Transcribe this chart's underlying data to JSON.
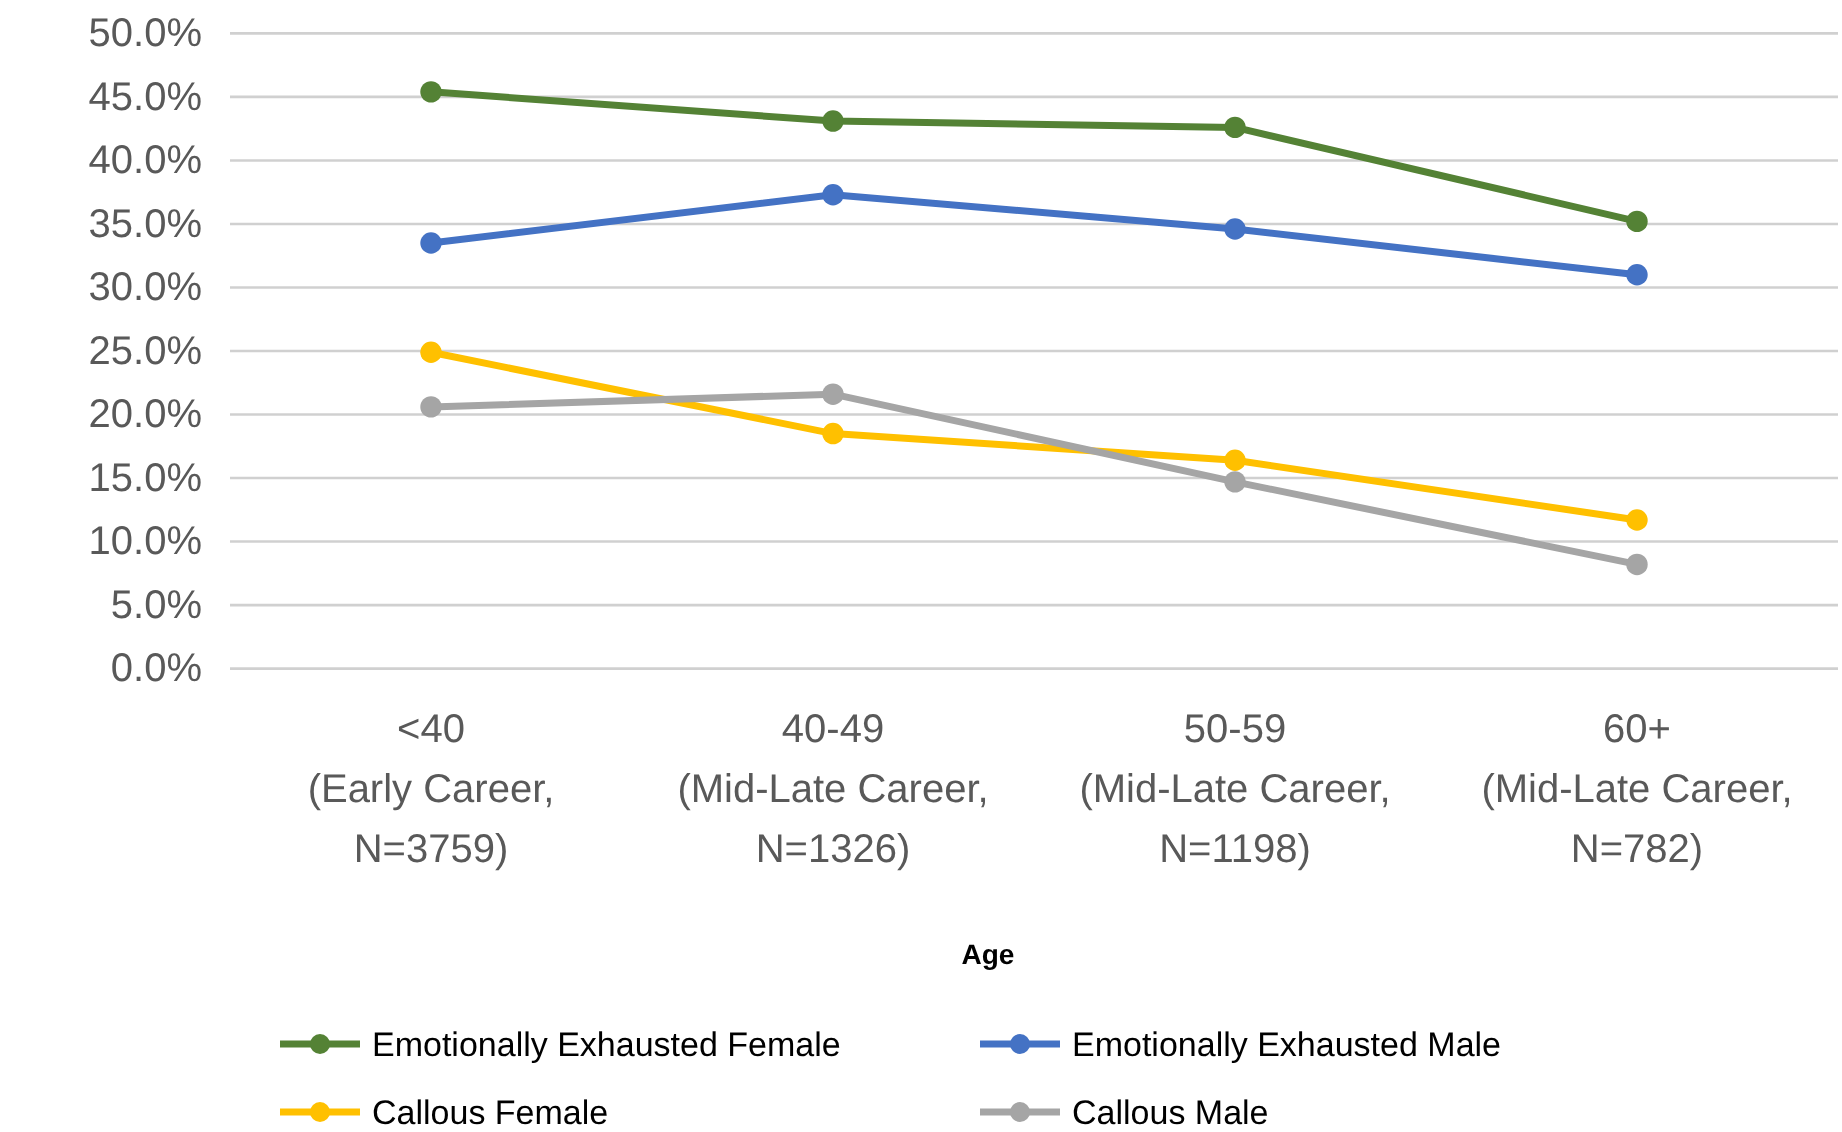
{
  "chart_data": {
    "type": "line",
    "xlabel": "Age",
    "categories": [
      "<40\n(Early Career,\nN=3759)",
      "40-49\n(Mid-Late Career,\nN=1326)",
      "50-59\n(Mid-Late Career,\nN=1198)",
      "60+\n(Mid-Late Career,\nN=782)"
    ],
    "series": [
      {
        "name": "Emotionally Exhausted Female",
        "color": "#548235",
        "values": [
          45.4,
          43.1,
          42.6,
          35.2
        ]
      },
      {
        "name": "Emotionally Exhausted Male",
        "color": "#4472c4",
        "values": [
          33.5,
          37.3,
          34.6,
          31.0
        ]
      },
      {
        "name": "Callous Female",
        "color": "#ffc000",
        "values": [
          24.9,
          18.5,
          16.4,
          11.7
        ]
      },
      {
        "name": "Callous Male",
        "color": "#a5a5a5",
        "values": [
          20.6,
          21.6,
          14.7,
          8.2
        ]
      }
    ],
    "ylim": [
      0,
      50
    ],
    "yticks": [
      {
        "value": 0,
        "label": "0.0%"
      },
      {
        "value": 5,
        "label": "5.0%"
      },
      {
        "value": 10,
        "label": "10.0%"
      },
      {
        "value": 15,
        "label": "15.0%"
      },
      {
        "value": 20,
        "label": "20.0%"
      },
      {
        "value": 25,
        "label": "25.0%"
      },
      {
        "value": 30,
        "label": "30.0%"
      },
      {
        "value": 35,
        "label": "35.0%"
      },
      {
        "value": 40,
        "label": "40.0%"
      },
      {
        "value": 45,
        "label": "45.0%"
      },
      {
        "value": 50,
        "label": "50.0%"
      }
    ],
    "grid": "y",
    "legend": "bottom",
    "marker": "circle",
    "line_style": "solid"
  }
}
